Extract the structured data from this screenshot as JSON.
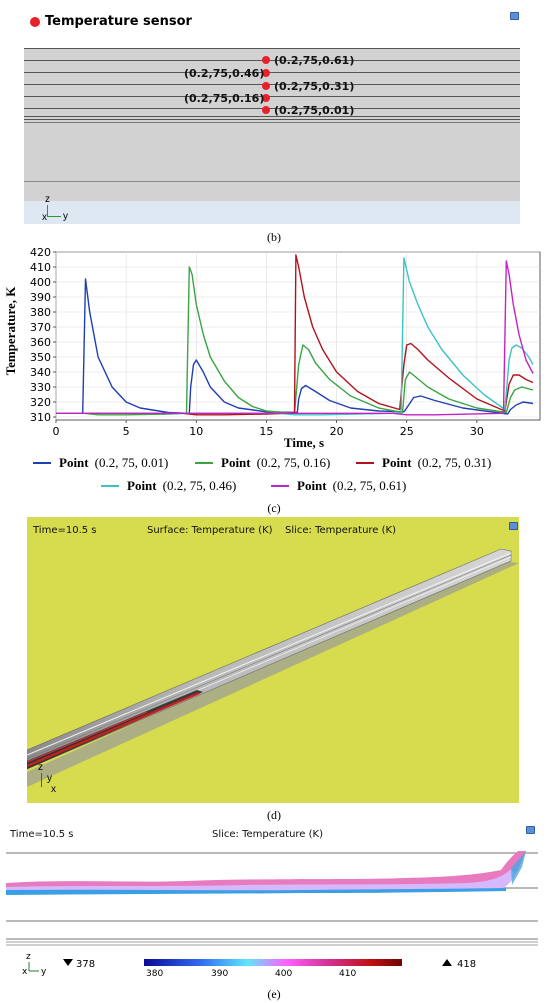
{
  "panel_b": {
    "sensor_label": "Temperature sensor",
    "points": [
      "(0.2,75,0.61)",
      "(0.2,75,0.46)",
      "(0.2,75,0.31)",
      "(0.2,75,0.16)",
      "(0.2,75,0.01)"
    ],
    "axis_z": "z",
    "axis_x": "x",
    "axis_y": "y",
    "caption": "(b)",
    "colors": {
      "sensor": "#e8202a",
      "slab": "#d4d4d4",
      "base": "#dde8f3"
    }
  },
  "chart_data": {
    "type": "line",
    "ylabel": "Temperature, K",
    "xlabel": "Time, s",
    "xlim": [
      0,
      34.5
    ],
    "ylim": [
      308,
      420
    ],
    "xticks": [
      "0",
      "5",
      "10",
      "15",
      "20",
      "25",
      "30"
    ],
    "yticks": [
      "310",
      "320",
      "330",
      "340",
      "350",
      "360",
      "370",
      "380",
      "390",
      "400",
      "410",
      "420"
    ],
    "grid": true,
    "legend_position": "bottom",
    "series": [
      {
        "name": "Point",
        "coords": "(0.2, 75, 0.01)",
        "color": "#1f3fb4",
        "x": [
          0,
          1.9,
          2.1,
          2.4,
          3,
          4,
          5,
          6,
          8,
          9.5,
          9.6,
          9.8,
          10,
          10.5,
          11,
          12,
          13,
          15,
          17.2,
          17.3,
          17.5,
          17.8,
          18.5,
          19.5,
          21,
          23,
          24.8,
          25,
          25.5,
          26,
          27,
          29,
          31,
          32.2,
          32.4,
          32.8,
          33.3,
          34
        ],
        "y": [
          312.5,
          312.5,
          402,
          380,
          350,
          330,
          320,
          316,
          313,
          312.5,
          330,
          345,
          348,
          340,
          330,
          320,
          316,
          313.5,
          313,
          322,
          329,
          331,
          327,
          321,
          316,
          314,
          313.5,
          316,
          323,
          324,
          321,
          316,
          313.5,
          312,
          315,
          318,
          320,
          319
        ]
      },
      {
        "name": "Point",
        "coords": "(0.2, 75, 0.16)",
        "color": "#3aa543",
        "x": [
          0,
          2,
          3,
          5,
          8,
          9.3,
          9.5,
          9.7,
          10,
          10.5,
          11,
          12,
          13,
          14,
          15,
          17,
          17.3,
          17.6,
          18,
          18.5,
          19.5,
          21,
          23,
          24.7,
          24.9,
          25.2,
          25.6,
          26.5,
          28,
          30,
          32.1,
          32.4,
          32.7,
          33.2,
          34
        ],
        "y": [
          312.5,
          312.5,
          311.5,
          311.5,
          312,
          312.5,
          410,
          405,
          385,
          365,
          350,
          334,
          323,
          317,
          314,
          312.5,
          345,
          358,
          355,
          346,
          335,
          324,
          316,
          313,
          335,
          340,
          337,
          330,
          322,
          316,
          313,
          323,
          328,
          330,
          328
        ]
      },
      {
        "name": "Point",
        "coords": "(0.2, 75, 0.31)",
        "color": "#b1131c",
        "x": [
          0,
          9,
          10,
          12,
          15,
          16.5,
          17,
          17.1,
          17.3,
          17.7,
          18.3,
          19,
          20,
          21.5,
          23,
          24.5,
          24.8,
          25,
          25.3,
          25.8,
          26.5,
          28,
          30,
          32,
          32.3,
          32.6,
          33,
          33.5,
          34
        ],
        "y": [
          312.5,
          312.5,
          311.5,
          311.5,
          312,
          312.5,
          312.5,
          418,
          410,
          390,
          370,
          355,
          340,
          327,
          319,
          315,
          345,
          358,
          359,
          355,
          348,
          336,
          322,
          314,
          332,
          338,
          338,
          335,
          333
        ]
      },
      {
        "name": "Point",
        "coords": "(0.2, 75, 0.46)",
        "color": "#3cc3c3",
        "x": [
          0,
          16,
          17,
          19,
          24,
          24.6,
          24.8,
          25.2,
          25.8,
          26.5,
          27.5,
          29,
          30.5,
          32,
          32.3,
          32.5,
          32.8,
          33.2,
          33.7,
          34
        ],
        "y": [
          312.5,
          312.5,
          311.5,
          311.5,
          312.5,
          312.5,
          416,
          400,
          385,
          370,
          355,
          338,
          325,
          315,
          348,
          356,
          358,
          356,
          350,
          345
        ]
      },
      {
        "name": "Point",
        "coords": "(0.2, 75, 0.61)",
        "color": "#c323c3",
        "x": [
          0,
          24,
          25,
          27,
          31.9,
          32.1,
          32.3,
          32.6,
          33,
          33.5,
          34
        ],
        "y": [
          312.5,
          312.5,
          311.5,
          311.5,
          312.5,
          414,
          405,
          385,
          365,
          348,
          339
        ]
      }
    ],
    "caption": "(c)"
  },
  "panel_d": {
    "time": "Time=10.5 s",
    "surface": "Surface: Temperature (K)",
    "slice": "Slice: Temperature (K)",
    "axis_z": "z",
    "axis_y": "y",
    "axis_x": "x",
    "caption": "(d)",
    "colors": {
      "background": "#d6dc4d"
    }
  },
  "panel_e": {
    "time": "Time=10.5 s",
    "slice": "Slice: Temperature (K)",
    "axis_z": "z",
    "axis_x": "x",
    "axis_y": "y",
    "min_label": "378",
    "max_label": "418",
    "colorbar_ticks": [
      "380",
      "390",
      "400",
      "410"
    ],
    "caption": "(e)"
  }
}
